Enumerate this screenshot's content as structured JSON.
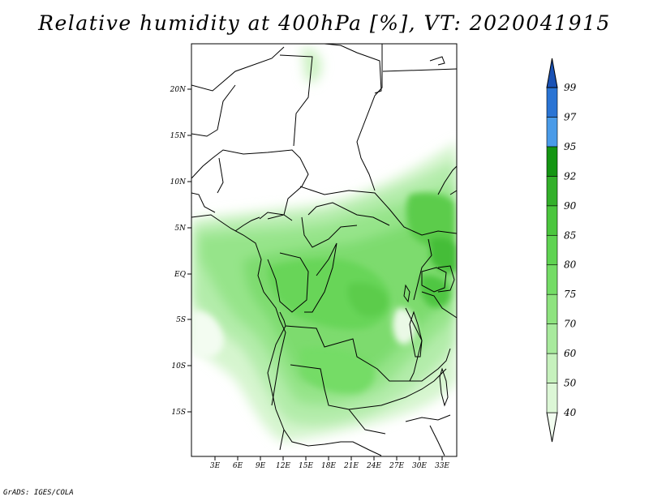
{
  "title": "Relative humidity at 400hPa [%], VT: 2020041915",
  "credit": "GrADS: IGES/COLA",
  "map": {
    "lat_labels": [
      "20N",
      "15N",
      "10N",
      "5N",
      "EQ",
      "5S",
      "10S",
      "15S"
    ],
    "lon_labels": [
      "3E",
      "6E",
      "9E",
      "12E",
      "15E",
      "18E",
      "21E",
      "24E",
      "27E",
      "30E",
      "33E"
    ]
  },
  "colorbar": {
    "levels": [
      "40",
      "50",
      "60",
      "70",
      "75",
      "80",
      "85",
      "90",
      "92",
      "95",
      "97",
      "99"
    ],
    "colors": [
      "#f2fdf0",
      "#dcf7d6",
      "#c6f1bd",
      "#a8ea9d",
      "#8ee37f",
      "#74dc66",
      "#5fd352",
      "#4bc63e",
      "#33b02a",
      "#149512",
      "#4a9be8",
      "#2a74d4",
      "#1a52b5"
    ]
  }
}
